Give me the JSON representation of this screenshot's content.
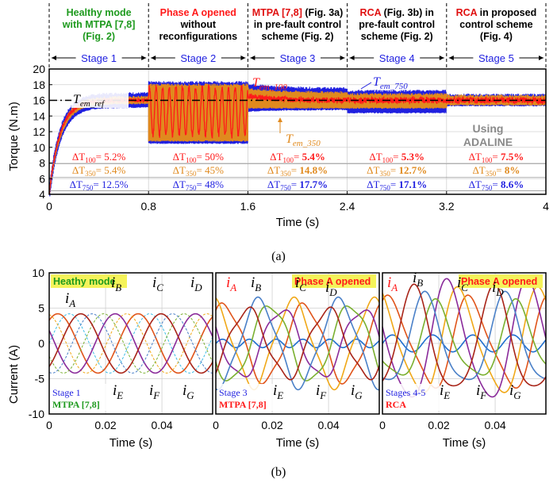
{
  "colors": {
    "green": "#1e9a1e",
    "red": "#ff1a1a",
    "darkred": "#e01010",
    "blue": "#1f1fe0",
    "orange": "#e08a1e",
    "black": "#000000",
    "gray": "#8a8a8a",
    "yellow": "#f5f35a",
    "cA": "#3dbde6",
    "cB": "#e0541a",
    "cC": "#f0a818",
    "cD": "#8a2a9a",
    "cE": "#7ab030",
    "cF": "#4a80c8",
    "cG": "#a82418"
  },
  "caption_a": "(a)",
  "caption_b": "(b)",
  "stage_headers": [
    {
      "lines": [
        "Healthy mode",
        "with MTPA [7,8]",
        "(Fig. 2)"
      ]
    },
    {
      "lines": [
        "Phase A opened",
        "without",
        "reconfigurations"
      ]
    },
    {
      "lines": [
        "MTPA [7,8] (Fig. 3a)",
        "in pre-fault control",
        "scheme (Fig. 2)"
      ]
    },
    {
      "lines": [
        "RCA (Fig. 3b) in",
        "pre-fault control",
        "scheme (Fig. 2)"
      ]
    },
    {
      "lines": [
        "RCA in proposed",
        "control scheme",
        "(Fig. 4)"
      ]
    }
  ],
  "chart_data": [
    {
      "type": "line",
      "title": "",
      "xlabel": "Time (s)",
      "ylabel": "Torque (N.m)",
      "xlim": [
        0,
        4
      ],
      "ylim": [
        4,
        20
      ],
      "xticks": [
        "0",
        "0.8",
        "1.6",
        "2.4",
        "3.2",
        "4"
      ],
      "yticks": [
        "4",
        "6",
        "8",
        "10",
        "12",
        "14",
        "16",
        "18",
        "20"
      ],
      "stages": [
        "Stage 1",
        "Stage 2",
        "Stage 3",
        "Stage 4",
        "Stage 5"
      ],
      "stage_bounds": [
        0,
        0.8,
        1.6,
        2.4,
        3.2,
        4
      ],
      "reference_value": 16,
      "series": [
        {
          "name": "T_em_ref",
          "label_main": "T",
          "label_sub": "em_ref"
        },
        {
          "name": "T_em_100",
          "label_main": "T",
          "label_sub": "em_100"
        },
        {
          "name": "T_em_350",
          "label_main": "T",
          "label_sub": "em_350"
        },
        {
          "name": "T_em_750",
          "label_main": "T",
          "label_sub": "em_750"
        }
      ],
      "ripple_100": [
        "5.2%",
        "50%",
        "5.4%",
        "5.3%",
        "7.5%"
      ],
      "ripple_350": [
        "5.4%",
        "45%",
        "14.8%",
        "12.7%",
        "8%"
      ],
      "ripple_750": [
        "12.5%",
        "48%",
        "17.7%",
        "17.1%",
        "8.6%"
      ],
      "ripple_labels": {
        "delta": "ΔT",
        "s100": "100",
        "s350": "350",
        "s750": "750"
      },
      "annotation": [
        "Using",
        "ADALINE"
      ]
    },
    {
      "type": "line",
      "panels": [
        {
          "badge": "Heathy mode",
          "stage": "Stage 1",
          "method": "MTPA [7,8]"
        },
        {
          "badge": "Phase A opened",
          "stage": "Stage 3",
          "method": "MTPA [7,8]"
        },
        {
          "badge": "Phase A opened",
          "stage": "Stages 4-5",
          "method": "RCA"
        }
      ],
      "ylabel": "Current (A)",
      "xlabel": "Time (s)",
      "ylim": [
        -10,
        10
      ],
      "xticks": [
        "0",
        "0.02",
        "0.04"
      ],
      "yticks": [
        "10",
        "5",
        "0",
        "-5",
        "-10"
      ],
      "phase_labels": [
        "A",
        "B",
        "C",
        "D",
        "E",
        "F",
        "G"
      ],
      "phase_letter": "i"
    }
  ]
}
